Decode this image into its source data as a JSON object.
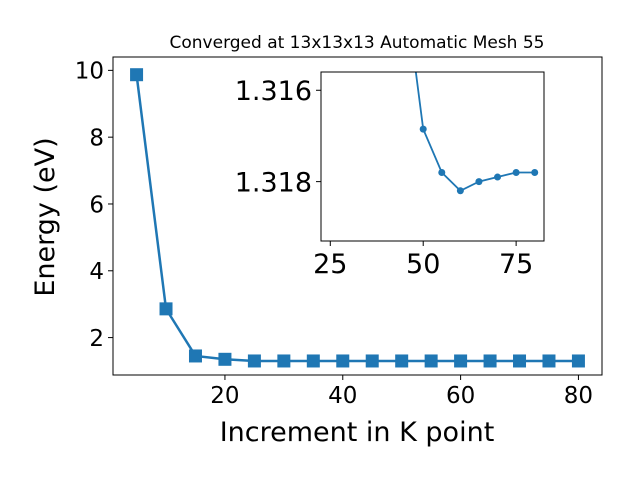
{
  "chart_data": [
    {
      "type": "line",
      "title": "Converged at 13x13x13 Automatic Mesh 55",
      "xlabel": "Increment in K point",
      "ylabel": "Energy (eV)",
      "xlim": [
        1,
        84
      ],
      "ylim": [
        0.88,
        10.4
      ],
      "xticks": [
        20,
        40,
        60,
        80
      ],
      "yticks": [
        2,
        4,
        6,
        8,
        10
      ],
      "marker": "square",
      "color": "#1f77b4",
      "series": [
        {
          "x": [
            5,
            10,
            15,
            20,
            25,
            30,
            35,
            40,
            45,
            50,
            55,
            60,
            65,
            70,
            75,
            80
          ],
          "y": [
            9.87,
            2.86,
            1.45,
            1.35,
            1.3,
            1.3,
            1.3,
            1.3,
            1.3,
            1.3,
            1.3,
            1.3,
            1.3,
            1.3,
            1.3,
            1.3
          ]
        }
      ]
    },
    {
      "type": "line",
      "role": "inset",
      "xlim": [
        22.5,
        82.5
      ],
      "ylim": [
        1.3156,
        1.3193
      ],
      "y_inverted": true,
      "xticks": [
        25,
        50,
        75
      ],
      "yticks": [
        1.316,
        1.318
      ],
      "marker": "circle",
      "color": "#1f77b4",
      "series": [
        {
          "x": [
            45,
            50,
            55,
            60,
            65,
            70,
            75,
            80
          ],
          "y": [
            1.3137,
            1.31685,
            1.3178,
            1.3182,
            1.318,
            1.3179,
            1.3178,
            1.3178
          ]
        }
      ]
    }
  ]
}
